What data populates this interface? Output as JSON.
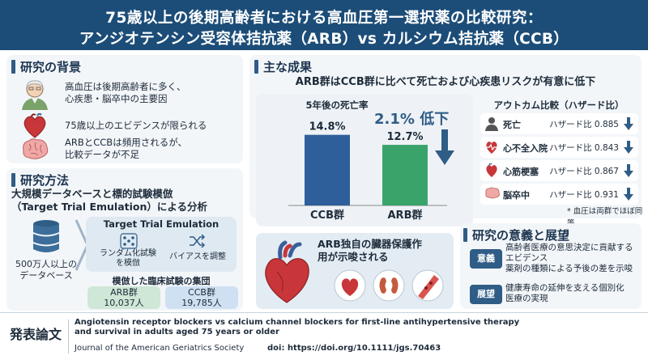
{
  "header": {
    "line1": "75歳以上の後期高齢者における高血圧第一選択薬の比較研究：",
    "line2": "アンジオテンシン受容体拮抗薬（ARB）vs カルシウム拮抗薬（CCB）"
  },
  "background": {
    "title": "研究の背景",
    "items": [
      {
        "icon": "elderly-person-icon",
        "lines": [
          "高血圧は後期高齢者に多く、",
          "心疾患・脳卒中の主要因"
        ]
      },
      {
        "icon": "heart-icon",
        "lines": [
          "75歳以上のエビデンスが限られる"
        ]
      },
      {
        "icon": "brain-icon",
        "lines": [
          "ARBとCCBは頻用されるが、",
          "比較データが不足"
        ]
      }
    ]
  },
  "methods": {
    "title": "研究方法",
    "subtitle_line1": "大規模データベースと標的試験模倣",
    "subtitle_line2": "（Target Trial Emulation）による分析",
    "db_label_line1": "500万人以上の",
    "db_label_line2": "データベース",
    "tte_title": "Target Trial Emulation",
    "tte_left_line1": "ランダム化試験",
    "tte_left_line2": "を模倣",
    "tte_right": "バイアスを調整",
    "cohort_title": "模倣した臨床試験の集団",
    "arb_group": "ARB群",
    "arb_n": "10,037人",
    "ccb_group": "CCB群",
    "ccb_n": "19,785人"
  },
  "results": {
    "title": "主な成果",
    "headline": "ARB群はCCB群に比べて死亡および心疾患リスクが有意に低下",
    "chart_title": "5年後の死亡率",
    "reduction_label": "2.1% 低下",
    "hr_title": "アウトカム比較（ハザード比）",
    "hr_items": [
      {
        "label": "死亡",
        "value": "ハザード比 0.885",
        "icon": "person-icon"
      },
      {
        "label": "心不全入院",
        "value": "ハザード比 0.843",
        "icon": "heartbeat-icon"
      },
      {
        "label": "心筋梗塞",
        "value": "ハザード比 0.867",
        "icon": "heart-icon"
      },
      {
        "label": "脳卒中",
        "value": "ハザード比 0.931",
        "icon": "brain-icon"
      }
    ],
    "note": "* 血圧は両群でほぼ同等",
    "organ_line1": "ARB独自の臓器保護作",
    "organ_line2": "用が示唆される"
  },
  "chart_data": {
    "type": "bar",
    "title": "5年後の死亡率",
    "categories": [
      "CCB群",
      "ARB群"
    ],
    "values": [
      14.8,
      12.7
    ],
    "value_labels": [
      "14.8%",
      "12.7%"
    ],
    "colors": [
      "#2e5f9a",
      "#3aa36a"
    ],
    "ylim": [
      0,
      20
    ]
  },
  "significance": {
    "title": "研究の意義と展望",
    "items": [
      {
        "badge": "意義",
        "lines": [
          "高齢者医療の意思決定に貢献する",
          "エビデンス",
          "薬剤の種類による予後の差を示唆"
        ]
      },
      {
        "badge": "展望",
        "lines": [
          "健康寿命の延伸を支える個別化",
          "医療の実現"
        ]
      }
    ]
  },
  "footer": {
    "label": "発表論文",
    "title_line1": "Angiotensin receptor blockers vs calcium channel blockers for first-line antihypertensive therapy",
    "title_line2": "and survival in adults aged 75 years or older",
    "journal": "Journal of the American Geriatrics Society",
    "doi": "doi: https://doi.org/10.1111/jgs.70463"
  },
  "colors": {
    "header": "#1c4d78",
    "ccb_bar": "#2e5f9a",
    "arb_bar": "#3aa36a",
    "down_arrow": "#2f5d86",
    "panel": "#f3f6f9"
  }
}
